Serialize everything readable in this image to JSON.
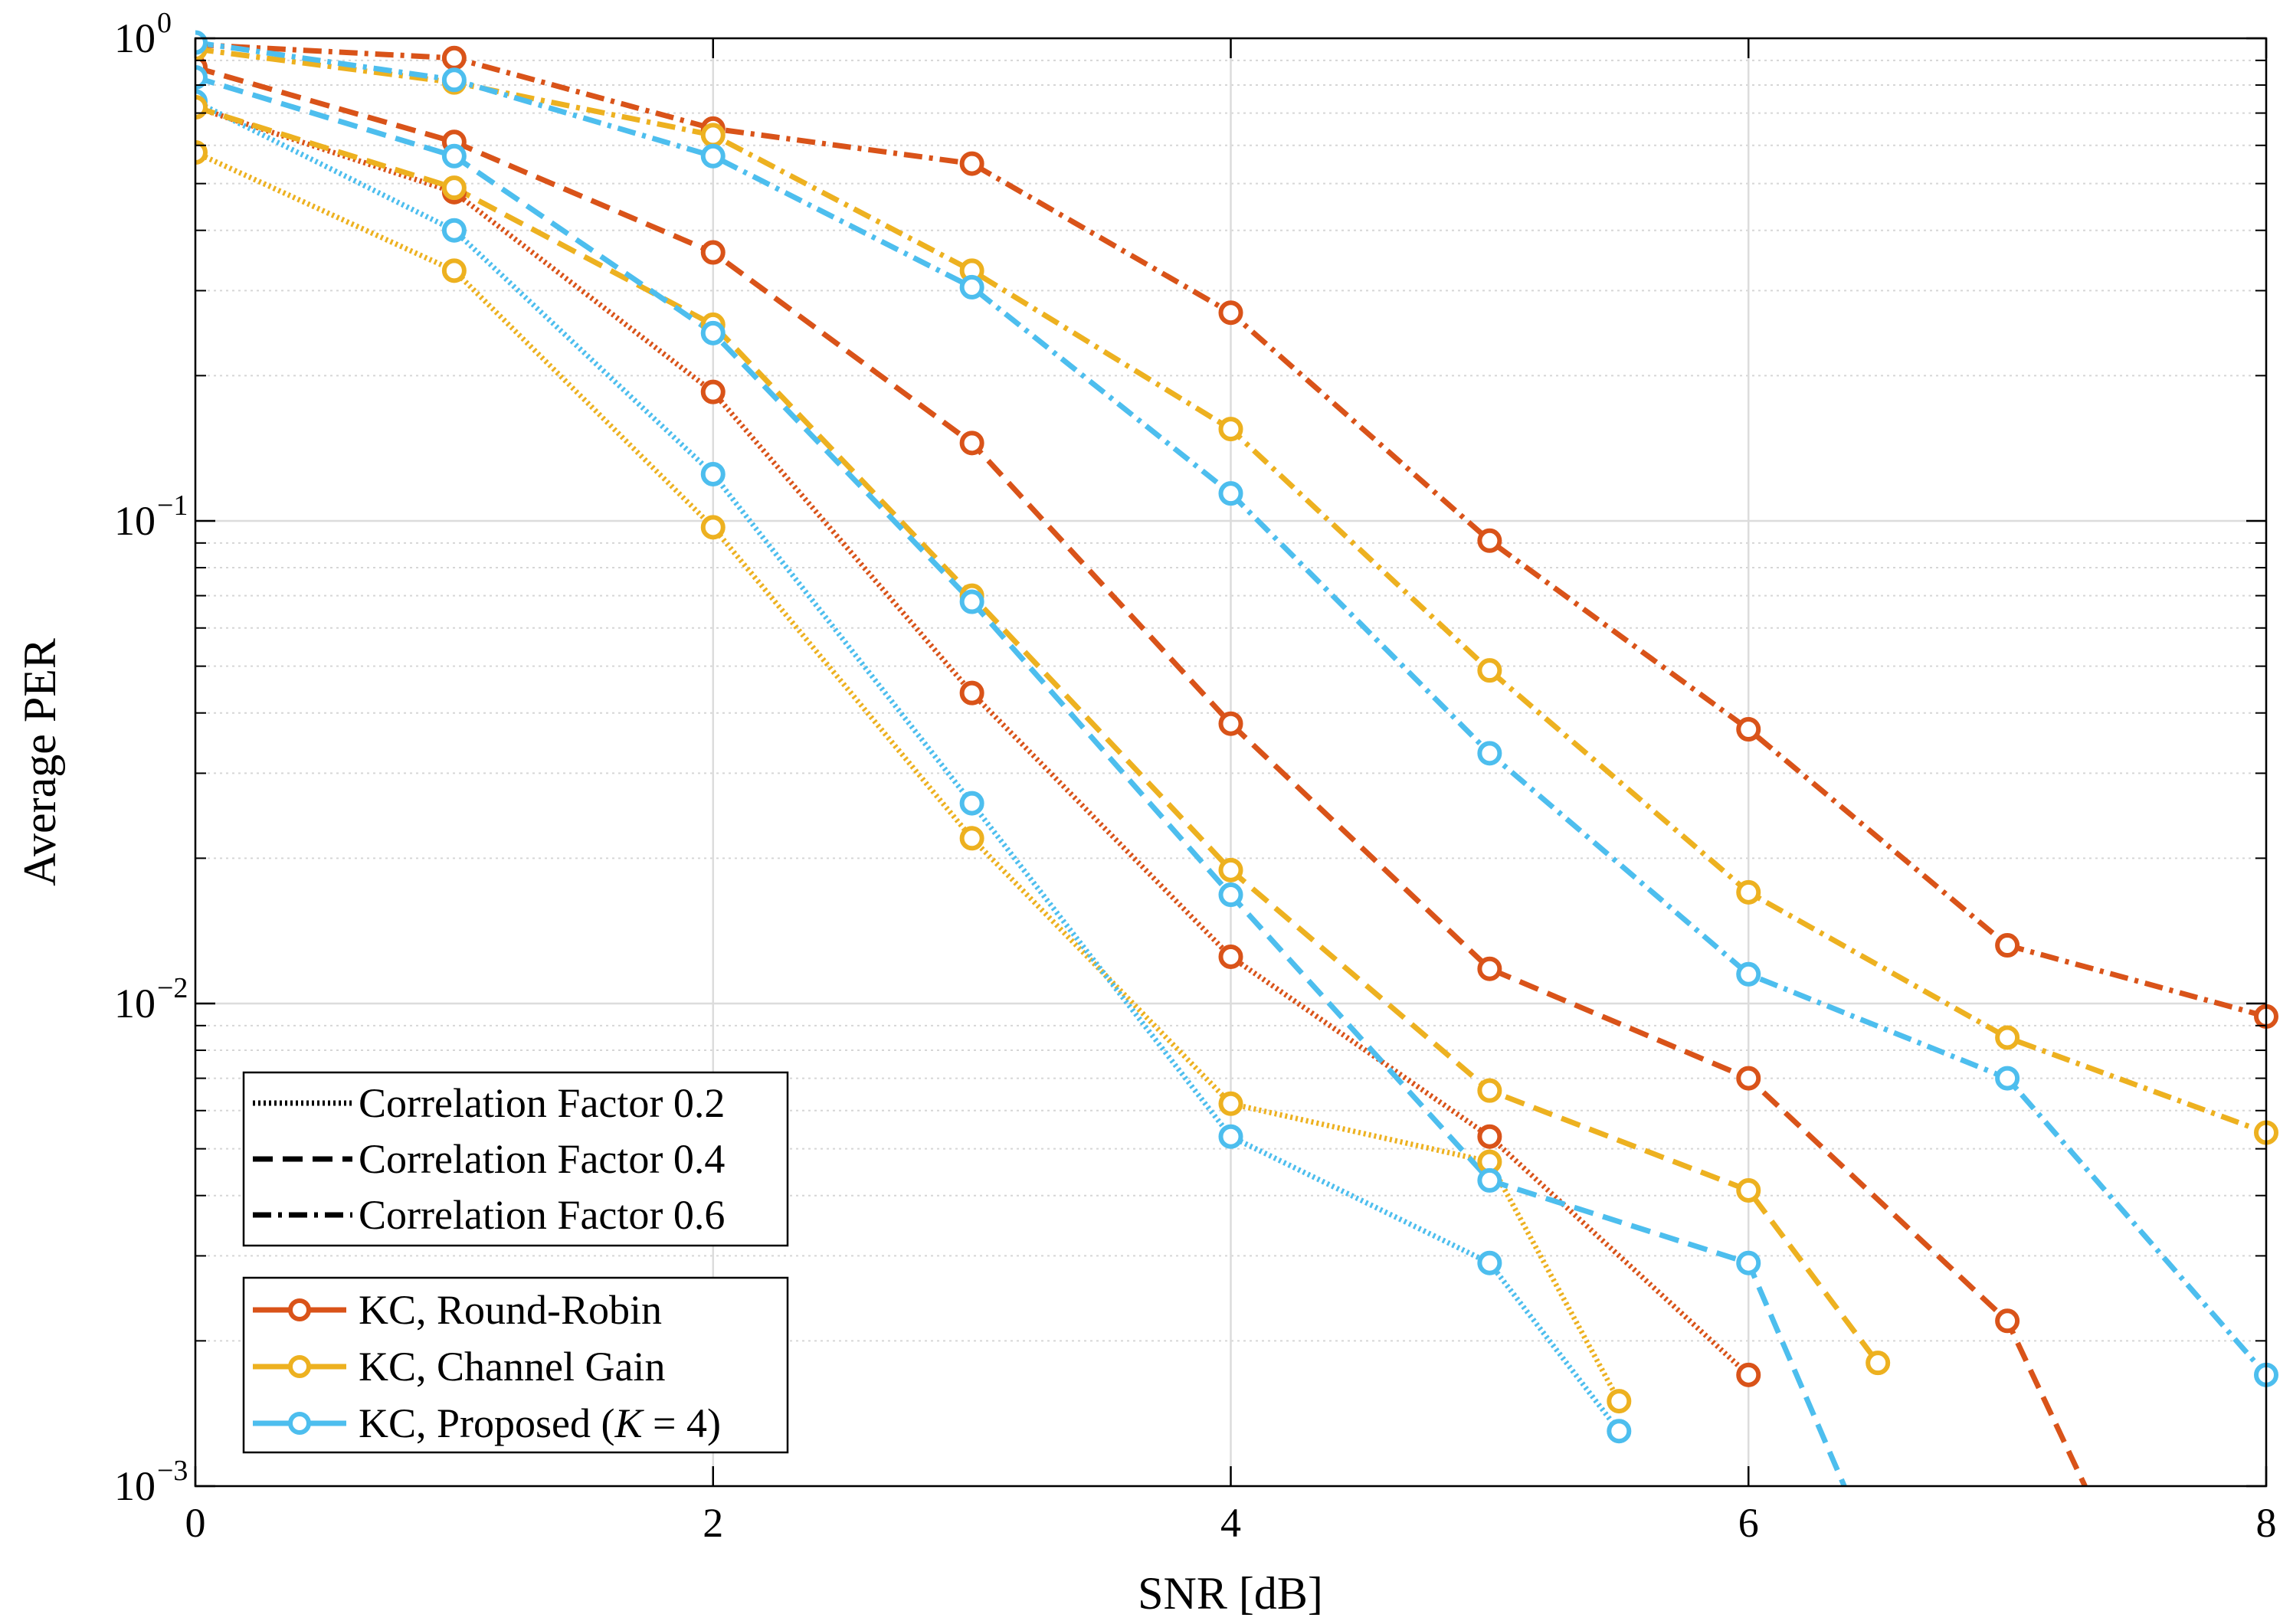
{
  "chart_data": {
    "type": "line",
    "xscale": "linear",
    "yscale": "log",
    "xlabel": "SNR [dB]",
    "ylabel": "Average PER",
    "xlim": [
      0,
      8
    ],
    "ylim": [
      0.001,
      1
    ],
    "grid": true,
    "x_ticks": [
      0,
      2,
      4,
      6,
      8
    ],
    "x_tick_labels": [
      "0",
      "2",
      "4",
      "6",
      "8"
    ],
    "y_ticks": [
      1,
      0.1,
      0.01,
      0.001
    ],
    "y_tick_labels": [
      {
        "base": "10",
        "exp": "0"
      },
      {
        "base": "10",
        "exp": "−1"
      },
      {
        "base": "10",
        "exp": "−2"
      },
      {
        "base": "10",
        "exp": "−3"
      }
    ],
    "colors": {
      "round_robin": "#D95319",
      "channel_gain": "#EDB120",
      "proposed": "#4DBEEE"
    },
    "series": [
      {
        "name": "KC, Round-Robin, Correlation Factor 0.2",
        "scheme": "round_robin",
        "style": "dotted",
        "x": [
          0,
          1,
          2,
          3,
          4,
          5,
          6
        ],
        "y": [
          0.72,
          0.48,
          0.185,
          0.044,
          0.0125,
          0.0053,
          0.0017
        ]
      },
      {
        "name": "KC, Channel Gain, Correlation Factor 0.2",
        "scheme": "channel_gain",
        "style": "dotted",
        "x": [
          0,
          1,
          2,
          3,
          4,
          5,
          5.5
        ],
        "y": [
          0.58,
          0.33,
          0.097,
          0.022,
          0.0062,
          0.0047,
          0.0015
        ]
      },
      {
        "name": "KC, Proposed (K = 4), Correlation Factor 0.2",
        "scheme": "proposed",
        "style": "dotted",
        "x": [
          0,
          1,
          2,
          3,
          4,
          5,
          5.5
        ],
        "y": [
          0.74,
          0.4,
          0.125,
          0.026,
          0.0053,
          0.0029,
          0.0013
        ]
      },
      {
        "name": "KC, Round-Robin, Correlation Factor 0.4",
        "scheme": "round_robin",
        "style": "dashed",
        "x": [
          0,
          1,
          2,
          3,
          4,
          5,
          6,
          7,
          7.3
        ],
        "y": [
          0.87,
          0.61,
          0.36,
          0.145,
          0.038,
          0.0118,
          0.007,
          0.0022,
          0.001
        ]
      },
      {
        "name": "KC, Channel Gain, Correlation Factor 0.4",
        "scheme": "channel_gain",
        "style": "dashed",
        "x": [
          0,
          1,
          2,
          3,
          4,
          5,
          6,
          6.5
        ],
        "y": [
          0.72,
          0.49,
          0.255,
          0.07,
          0.0189,
          0.0066,
          0.0041,
          0.0018
        ]
      },
      {
        "name": "KC, Proposed (K = 4), Correlation Factor 0.4",
        "scheme": "proposed",
        "style": "dashed",
        "x": [
          0,
          1,
          2,
          3,
          4,
          5,
          6,
          6.37
        ],
        "y": [
          0.83,
          0.57,
          0.245,
          0.068,
          0.0168,
          0.0043,
          0.0029,
          0.001
        ]
      },
      {
        "name": "KC, Round-Robin, Correlation Factor 0.6",
        "scheme": "round_robin",
        "style": "dashdot",
        "x": [
          0,
          1,
          2,
          3,
          4,
          5,
          6,
          7,
          8
        ],
        "y": [
          0.97,
          0.91,
          0.65,
          0.55,
          0.27,
          0.091,
          0.037,
          0.0132,
          0.0094
        ]
      },
      {
        "name": "KC, Channel Gain, Correlation Factor 0.6",
        "scheme": "channel_gain",
        "style": "dashdot",
        "x": [
          0,
          1,
          2,
          3,
          4,
          5,
          6,
          7,
          8
        ],
        "y": [
          0.95,
          0.81,
          0.63,
          0.33,
          0.155,
          0.049,
          0.017,
          0.0085,
          0.0054
        ]
      },
      {
        "name": "KC, Proposed (K = 4), Correlation Factor 0.6",
        "scheme": "proposed",
        "style": "dashdot",
        "x": [
          0,
          1,
          2,
          3,
          4,
          5,
          6,
          7,
          8
        ],
        "y": [
          0.98,
          0.82,
          0.57,
          0.305,
          0.114,
          0.033,
          0.0115,
          0.007,
          0.0017
        ]
      }
    ],
    "legend_styles": {
      "placement": "bottom-left",
      "entries": [
        {
          "label": "Correlation Factor 0.2",
          "style": "dotted"
        },
        {
          "label": "Correlation Factor 0.4",
          "style": "dashed"
        },
        {
          "label": "Correlation Factor 0.6",
          "style": "dashdot"
        }
      ]
    },
    "legend_schemes": {
      "placement": "bottom-left",
      "entries": [
        {
          "label": "KC, Round-Robin",
          "scheme": "round_robin"
        },
        {
          "label": "KC, Channel Gain",
          "scheme": "channel_gain"
        },
        {
          "label": "KC, Proposed (",
          "label_var": "K",
          "label_rest": " = 4)",
          "scheme": "proposed"
        }
      ]
    }
  }
}
